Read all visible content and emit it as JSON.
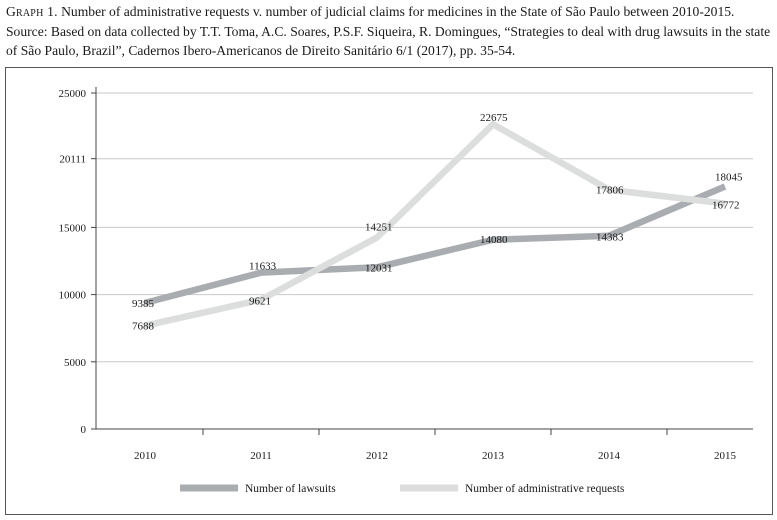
{
  "caption": {
    "graph_label": "Graph 1.",
    "text": "Number of administrative requests v. number of judicial claims for medicines in the State of São Paulo between 2010-2015. Source: Based on data collected by T.T. Toma, A.C. Soares, P.S.F. Siqueira, R. Domingues, “Strategies to deal with drug lawsuits in the state of São Paulo, Brazil”, Cadernos Ibero-Americanos de Direito Sanitário 6/1 (2017), pp. 35-54."
  },
  "chart_data": {
    "type": "line",
    "title": "",
    "xlabel": "",
    "ylabel": "",
    "categories": [
      "2010",
      "2011",
      "2012",
      "2013",
      "2014",
      "2015"
    ],
    "y_ticks": [
      0,
      5000,
      10000,
      15000,
      20111,
      25000
    ],
    "ylim": [
      0,
      25000
    ],
    "grid": true,
    "legend_position": "bottom",
    "series": [
      {
        "name": "Number of lawsuits",
        "color": "#a9acb0",
        "values": [
          9385,
          11633,
          12031,
          14080,
          14383,
          18045
        ]
      },
      {
        "name": "Number of administrative requests",
        "color": "#dcdddd",
        "values": [
          7688,
          9621,
          14251,
          22675,
          17806,
          16772
        ]
      }
    ]
  }
}
